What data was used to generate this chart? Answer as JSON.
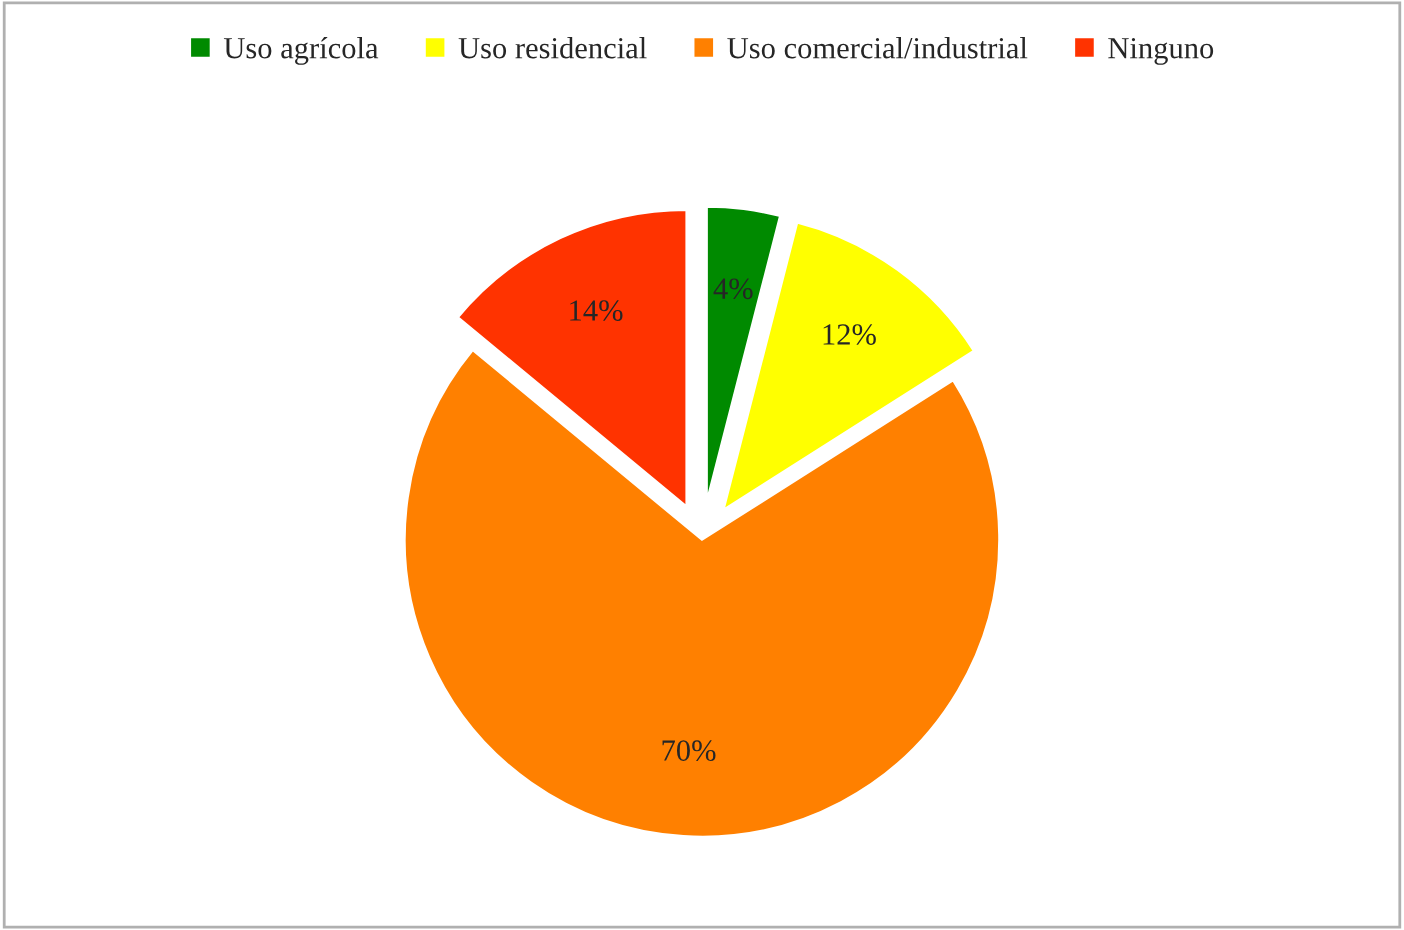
{
  "chart_data": {
    "type": "pie",
    "categories": [
      "Uso agrícola",
      "Uso residencial",
      "Uso comercial/industrial",
      "Ninguno"
    ],
    "values": [
      4,
      12,
      70,
      14
    ],
    "colors": [
      "#008a00",
      "#ffff00",
      "#ff8000",
      "#ff3300"
    ],
    "value_labels": [
      "4%",
      "12%",
      "70%",
      "14%"
    ],
    "legend": "top"
  }
}
